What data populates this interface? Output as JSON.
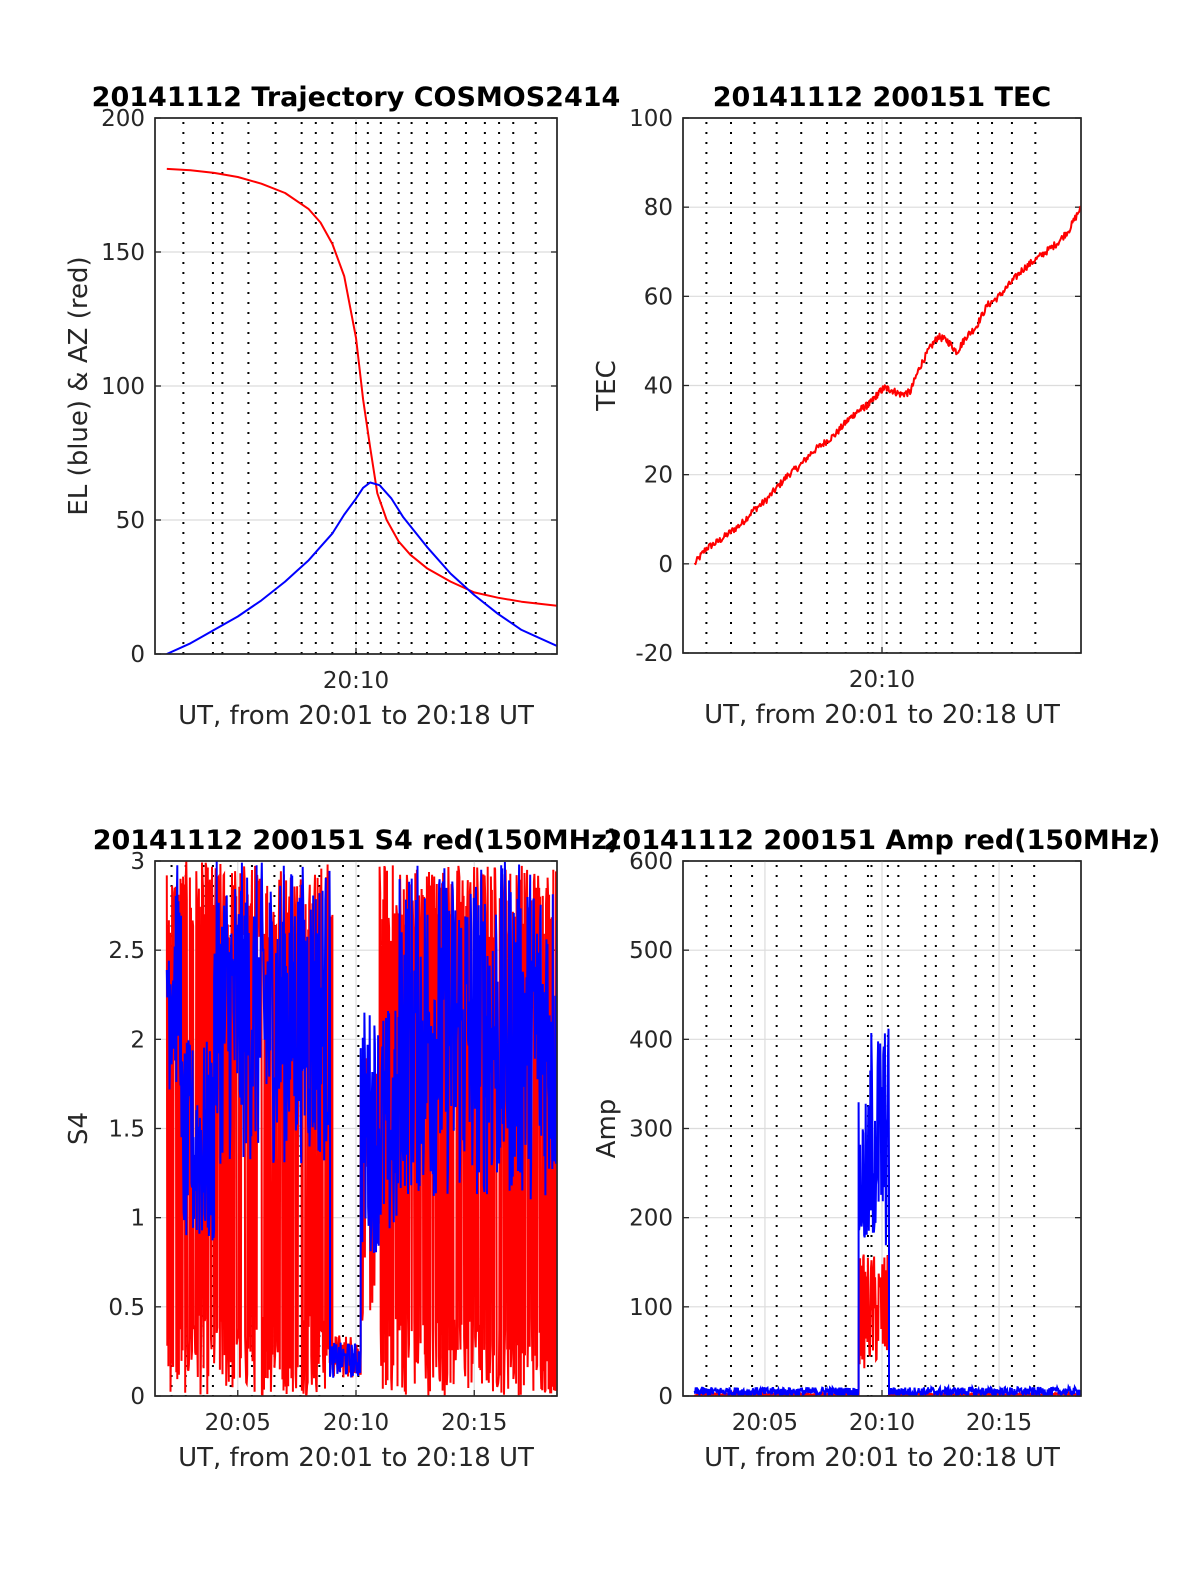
{
  "colors": {
    "red": "#ff0000",
    "blue": "#0000ff",
    "grid": "#dcdcdc",
    "axis": "#262626"
  },
  "chart_data": [
    {
      "type": "line",
      "title": "20141112 Trajectory COSMOS2414",
      "xlabel": "UT, from 20:01 to 20:18 UT",
      "ylabel": "EL (blue) & AZ (red)",
      "xlim_min": [
        1.5,
        18.5
      ],
      "ylim": [
        0,
        200
      ],
      "yticks": [
        "0",
        "50",
        "100",
        "150",
        "200"
      ],
      "xticks": [
        {
          "min": 10,
          "label": "20:10"
        }
      ],
      "grid": true,
      "vertical_dotted_lines_min": [
        2.7,
        3.95,
        4.35,
        5.45,
        6.6,
        7.7,
        8.3,
        9.0,
        10.0,
        10.5,
        11.05,
        11.8,
        12.35,
        13.0,
        13.8,
        14.65,
        15.45,
        16.05,
        16.65,
        17.6
      ],
      "series": [
        {
          "color": "red",
          "x_min": [
            2,
            3,
            4,
            5,
            6,
            7,
            8,
            8.5,
            9,
            9.5,
            10,
            10.3,
            10.6,
            10.9,
            11.3,
            11.8,
            12.3,
            13,
            14,
            15,
            16,
            17,
            18.5
          ],
          "y": [
            181,
            180.5,
            179.5,
            178,
            175.5,
            172,
            166,
            161,
            153,
            141,
            118,
            95,
            77,
            60,
            50,
            42,
            37,
            32,
            27,
            23,
            21,
            19.5,
            18
          ]
        },
        {
          "color": "blue",
          "x_min": [
            2,
            3,
            4,
            5,
            6,
            7,
            7.5,
            8,
            8.5,
            9,
            9.5,
            10,
            10.3,
            10.6,
            11,
            11.5,
            12,
            13,
            14,
            15,
            16,
            17,
            18.5
          ],
          "y": [
            0,
            4,
            9,
            14,
            20,
            27,
            31,
            35,
            40,
            45,
            52,
            58,
            62,
            64,
            63,
            58,
            51,
            40,
            30,
            22,
            15,
            9,
            3
          ]
        }
      ]
    },
    {
      "type": "line",
      "title": "20141112 200151 TEC",
      "xlabel": "UT, from 20:01 to 20:18 UT",
      "ylabel": "TEC",
      "xlim_min": [
        1.5,
        18.5
      ],
      "ylim": [
        -20,
        100
      ],
      "yticks": [
        "-20",
        "0",
        "20",
        "40",
        "60",
        "80",
        "100"
      ],
      "xticks": [
        {
          "min": 10,
          "label": "20:10"
        }
      ],
      "grid": true,
      "vertical_dotted_lines_min": [
        2.5,
        3.55,
        4.55,
        5.5,
        6.55,
        7.65,
        8.45,
        9.4,
        9.6,
        10.2,
        10.8,
        11.9,
        12.3,
        13.0,
        14.1,
        14.7,
        15.55,
        16.55
      ],
      "series": [
        {
          "color": "red",
          "x_min": [
            2,
            2.5,
            3,
            3.5,
            4,
            4.5,
            5,
            5.5,
            6,
            6.5,
            7,
            7.5,
            8,
            8.5,
            8.9,
            9.2,
            9.5,
            9.8,
            10.1,
            10.4,
            10.8,
            11.2,
            11.6,
            12,
            12.4,
            12.8,
            13.2,
            13.6,
            14,
            14.5,
            15,
            15.5,
            16,
            16.5,
            17,
            17.5,
            18,
            18.5
          ],
          "y": [
            0,
            3.5,
            5,
            7,
            9,
            12,
            14,
            17,
            20,
            22,
            25,
            27,
            29,
            32,
            34,
            35,
            36,
            38,
            39.5,
            39,
            38,
            38.5,
            44,
            48,
            51,
            50,
            47.5,
            51,
            53,
            58,
            60,
            63,
            66,
            68,
            70,
            72,
            75,
            80
          ]
        }
      ]
    },
    {
      "type": "line",
      "title": "20141112 200151 S4 red(150MHz)",
      "xlabel": "UT, from 20:01 to 20:18 UT",
      "ylabel": "S4",
      "xlim_min": [
        1.5,
        18.5
      ],
      "ylim": [
        0,
        3
      ],
      "yticks": [
        "0",
        "0.5",
        "1",
        "1.5",
        "2",
        "2.5",
        "3"
      ],
      "xticks": [
        {
          "min": 5,
          "label": "20:05"
        },
        {
          "min": 10,
          "label": "20:10"
        },
        {
          "min": 15,
          "label": "20:15"
        }
      ],
      "grid": true,
      "vertical_dotted_lines_min": [
        2.2,
        2.8,
        3.55,
        3.95,
        4.7,
        5.6,
        6.55,
        7.65,
        8.45,
        9.45,
        10.1
      ],
      "series": [
        {
          "color": "red",
          "segments": [
            {
              "x_min": [
                2.0,
                9.0
              ],
              "y_range": [
                0,
                3
              ]
            },
            {
              "x_min": [
                9.0,
                10.2
              ],
              "y_range": [
                0.1,
                0.35
              ]
            },
            {
              "x_min": [
                10.2,
                11.0
              ],
              "y_range": [
                0.4,
                1.9
              ]
            },
            {
              "x_min": [
                11.0,
                18.5
              ],
              "y_range": [
                0,
                3
              ]
            }
          ]
        },
        {
          "color": "blue",
          "segments": [
            {
              "x_min": [
                2.0,
                2.6
              ],
              "y_range": [
                1.7,
                3
              ]
            },
            {
              "x_min": [
                2.6,
                4.0
              ],
              "y_range": [
                0.8,
                2.0
              ]
            },
            {
              "x_min": [
                4.0,
                8.9
              ],
              "y_range": [
                1.3,
                3
              ]
            },
            {
              "x_min": [
                8.9,
                10.2
              ],
              "y_range": [
                0.1,
                0.3
              ]
            },
            {
              "x_min": [
                10.2,
                11.8
              ],
              "y_range": [
                0.8,
                2.2
              ]
            },
            {
              "x_min": [
                11.8,
                18.5
              ],
              "y_range": [
                1.1,
                3
              ]
            }
          ]
        }
      ]
    },
    {
      "type": "line",
      "title": "20141112 200151 Amp red(150MHz)",
      "xlabel": "UT, from 20:01 to 20:18 UT",
      "ylabel": "Amp",
      "xlim_min": [
        1.5,
        18.5
      ],
      "ylim": [
        0,
        600
      ],
      "yticks": [
        "0",
        "100",
        "200",
        "300",
        "400",
        "500",
        "600"
      ],
      "xticks": [
        {
          "min": 5,
          "label": "20:05"
        },
        {
          "min": 10,
          "label": "20:10"
        },
        {
          "min": 15,
          "label": "20:15"
        }
      ],
      "grid": true,
      "vertical_dotted_lines_min": [
        2.5,
        3.55,
        4.45,
        5.5,
        6.55,
        7.6,
        8.45,
        9.4,
        9.55,
        10.25,
        10.7,
        11.85,
        12.3,
        13.05,
        14.0,
        14.75,
        15.55,
        16.5
      ],
      "series": [
        {
          "color": "red",
          "segments": [
            {
              "x_min": [
                2.0,
                9.0
              ],
              "y_range": [
                0,
                3
              ]
            },
            {
              "x_min": [
                9.0,
                10.3
              ],
              "y_range": [
                30,
                160
              ]
            },
            {
              "x_min": [
                10.3,
                18.5
              ],
              "y_range": [
                0,
                3
              ]
            }
          ]
        },
        {
          "color": "blue",
          "segments": [
            {
              "x_min": [
                2.0,
                9.0
              ],
              "y_range": [
                0,
                10
              ]
            },
            {
              "x_min": [
                9.0,
                9.5
              ],
              "y_range": [
                150,
                330
              ]
            },
            {
              "x_min": [
                9.5,
                10.3
              ],
              "y_range": [
                160,
                420
              ]
            },
            {
              "x_min": [
                10.3,
                18.5
              ],
              "y_range": [
                0,
                10
              ]
            }
          ]
        }
      ]
    }
  ]
}
